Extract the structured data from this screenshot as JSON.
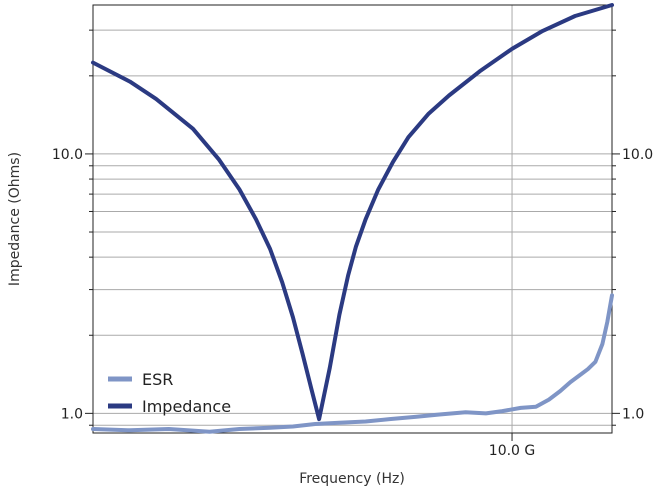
{
  "chart_data": {
    "type": "line",
    "xlabel": "Frequency (Hz)",
    "ylabel": "Impedance (Ohms)",
    "x_scale": "log",
    "y_scale": "log",
    "x_tick_labels": [
      {
        "value": 10000000000,
        "label": "10.0 G"
      }
    ],
    "y_tick_labels": [
      {
        "value": 1.0,
        "label": "1.0"
      },
      {
        "value": 10.0,
        "label": "10.0"
      }
    ],
    "xlim": [
      100000000,
      30000000000
    ],
    "ylim": [
      0.84,
      37.5
    ],
    "grid": true,
    "legend_position": "lower-left",
    "series": [
      {
        "name": "ESR",
        "color": "#7f95c6",
        "x": [
          100000000,
          150000000,
          230000000,
          360000000,
          500000000,
          700000000,
          900000000,
          1150000000,
          1500000000,
          2000000000,
          2600000000,
          3500000000,
          4500000000,
          6000000000,
          7500000000,
          9000000000,
          11000000000,
          13000000000,
          15000000000,
          17000000000,
          19000000000,
          21000000000,
          23000000000,
          25000000000,
          27000000000,
          28500000000,
          30000000000
        ],
        "y": [
          0.87,
          0.86,
          0.87,
          0.85,
          0.87,
          0.88,
          0.89,
          0.91,
          0.92,
          0.93,
          0.95,
          0.97,
          0.99,
          1.01,
          1.0,
          1.02,
          1.05,
          1.06,
          1.13,
          1.22,
          1.32,
          1.4,
          1.48,
          1.58,
          1.85,
          2.25,
          2.85
        ]
      },
      {
        "name": "Impedance",
        "color": "#2b3a82",
        "x": [
          100000000,
          150000000,
          200000000,
          300000000,
          400000000,
          500000000,
          600000000,
          700000000,
          800000000,
          900000000,
          1000000000,
          1100000000,
          1200000000,
          1350000000,
          1500000000,
          1650000000,
          1800000000,
          2000000000,
          2300000000,
          2700000000,
          3200000000,
          4000000000,
          5000000000,
          7000000000,
          10000000000,
          14000000000,
          20000000000,
          30000000000
        ],
        "y": [
          22.5,
          19.0,
          16.3,
          12.5,
          9.5,
          7.3,
          5.6,
          4.3,
          3.2,
          2.35,
          1.7,
          1.25,
          0.95,
          1.5,
          2.4,
          3.4,
          4.4,
          5.6,
          7.3,
          9.3,
          11.6,
          14.3,
          16.8,
          20.8,
          25.4,
          29.8,
          34.0,
          37.5
        ]
      }
    ]
  }
}
